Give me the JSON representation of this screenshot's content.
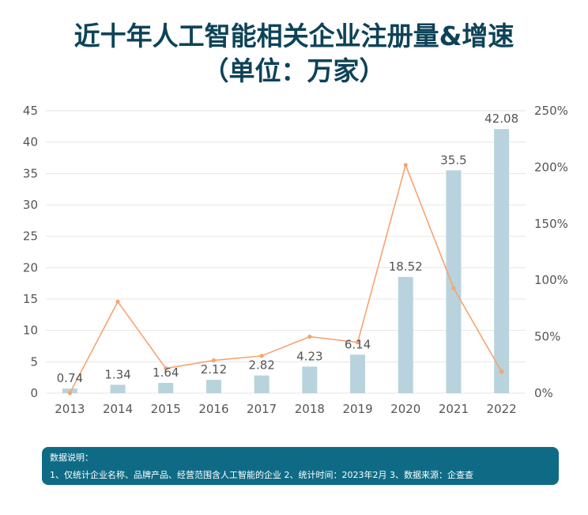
{
  "title": {
    "line1": "近十年人工智能相关企业注册量&增速",
    "line2": "（单位：万家）"
  },
  "chart_data": {
    "type": "bar",
    "categories": [
      "2013",
      "2014",
      "2015",
      "2016",
      "2017",
      "2018",
      "2019",
      "2020",
      "2021",
      "2022"
    ],
    "series": [
      {
        "type": "bar",
        "axis": "left",
        "values": [
          0.74,
          1.34,
          1.64,
          2.12,
          2.82,
          4.23,
          6.14,
          18.52,
          35.5,
          42.08
        ],
        "labels": [
          "0.74",
          "1.34",
          "1.64",
          "2.12",
          "2.82",
          "4.23",
          "6.14",
          "18.52",
          "35.5",
          "42.08"
        ]
      },
      {
        "type": "line",
        "axis": "right",
        "values": [
          0,
          81,
          22,
          29,
          33,
          50,
          45,
          202,
          93,
          19
        ]
      }
    ],
    "y_left": {
      "min": 0,
      "max": 45,
      "ticks": [
        "0",
        "5",
        "10",
        "15",
        "20",
        "25",
        "30",
        "35",
        "40",
        "45"
      ]
    },
    "y_right": {
      "min": 0,
      "max": 250,
      "ticks": [
        "0%",
        "50%",
        "100%",
        "150%",
        "200%",
        "250%"
      ]
    },
    "grid": true,
    "colors": {
      "bar": "#b8d3dd",
      "line": "#f7a36f",
      "axis_text": "#555555",
      "grid": "#e6e6e6"
    }
  },
  "note": {
    "heading": "数据说明：",
    "body": "1、仅统计企业名称、品牌产品、经营范围含人工智能的企业 2、统计时间：2023年2月 3、数据来源：企查查"
  }
}
